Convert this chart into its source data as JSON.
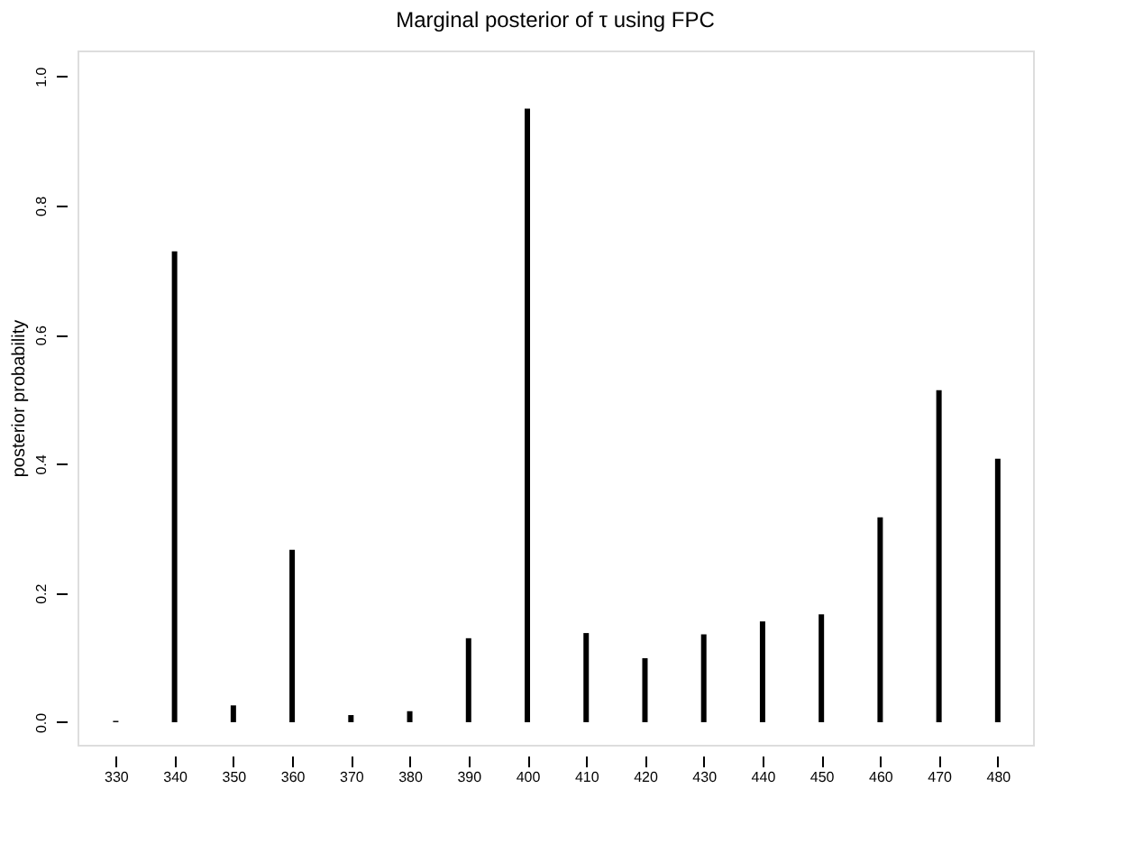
{
  "chart_data": {
    "type": "bar",
    "title": "Marginal posterior of τ using FPC",
    "ylabel": "posterior probability",
    "x": [
      330,
      340,
      350,
      360,
      370,
      380,
      390,
      400,
      410,
      420,
      430,
      440,
      450,
      460,
      470,
      480
    ],
    "values": [
      0.002,
      0.729,
      0.026,
      0.267,
      0.011,
      0.017,
      0.13,
      0.95,
      0.138,
      0.099,
      0.136,
      0.156,
      0.167,
      0.317,
      0.514,
      0.408
    ],
    "color": "#000000",
    "xlim": [
      323.5,
      486
    ],
    "xticks": [
      330,
      340,
      350,
      360,
      370,
      380,
      390,
      400,
      410,
      420,
      430,
      440,
      450,
      460,
      470,
      480
    ],
    "ylim": [
      -0.035,
      1.04
    ],
    "yticks": [
      {
        "value": 0,
        "label": "0.0"
      },
      {
        "value": 0.2,
        "label": "0.2"
      },
      {
        "value": 0.4,
        "label": "0.4"
      },
      {
        "value": 0.6,
        "label": "0.6"
      },
      {
        "value": 0.8,
        "label": "0.8"
      },
      {
        "value": 1,
        "label": "1.0"
      }
    ],
    "grid": false
  }
}
